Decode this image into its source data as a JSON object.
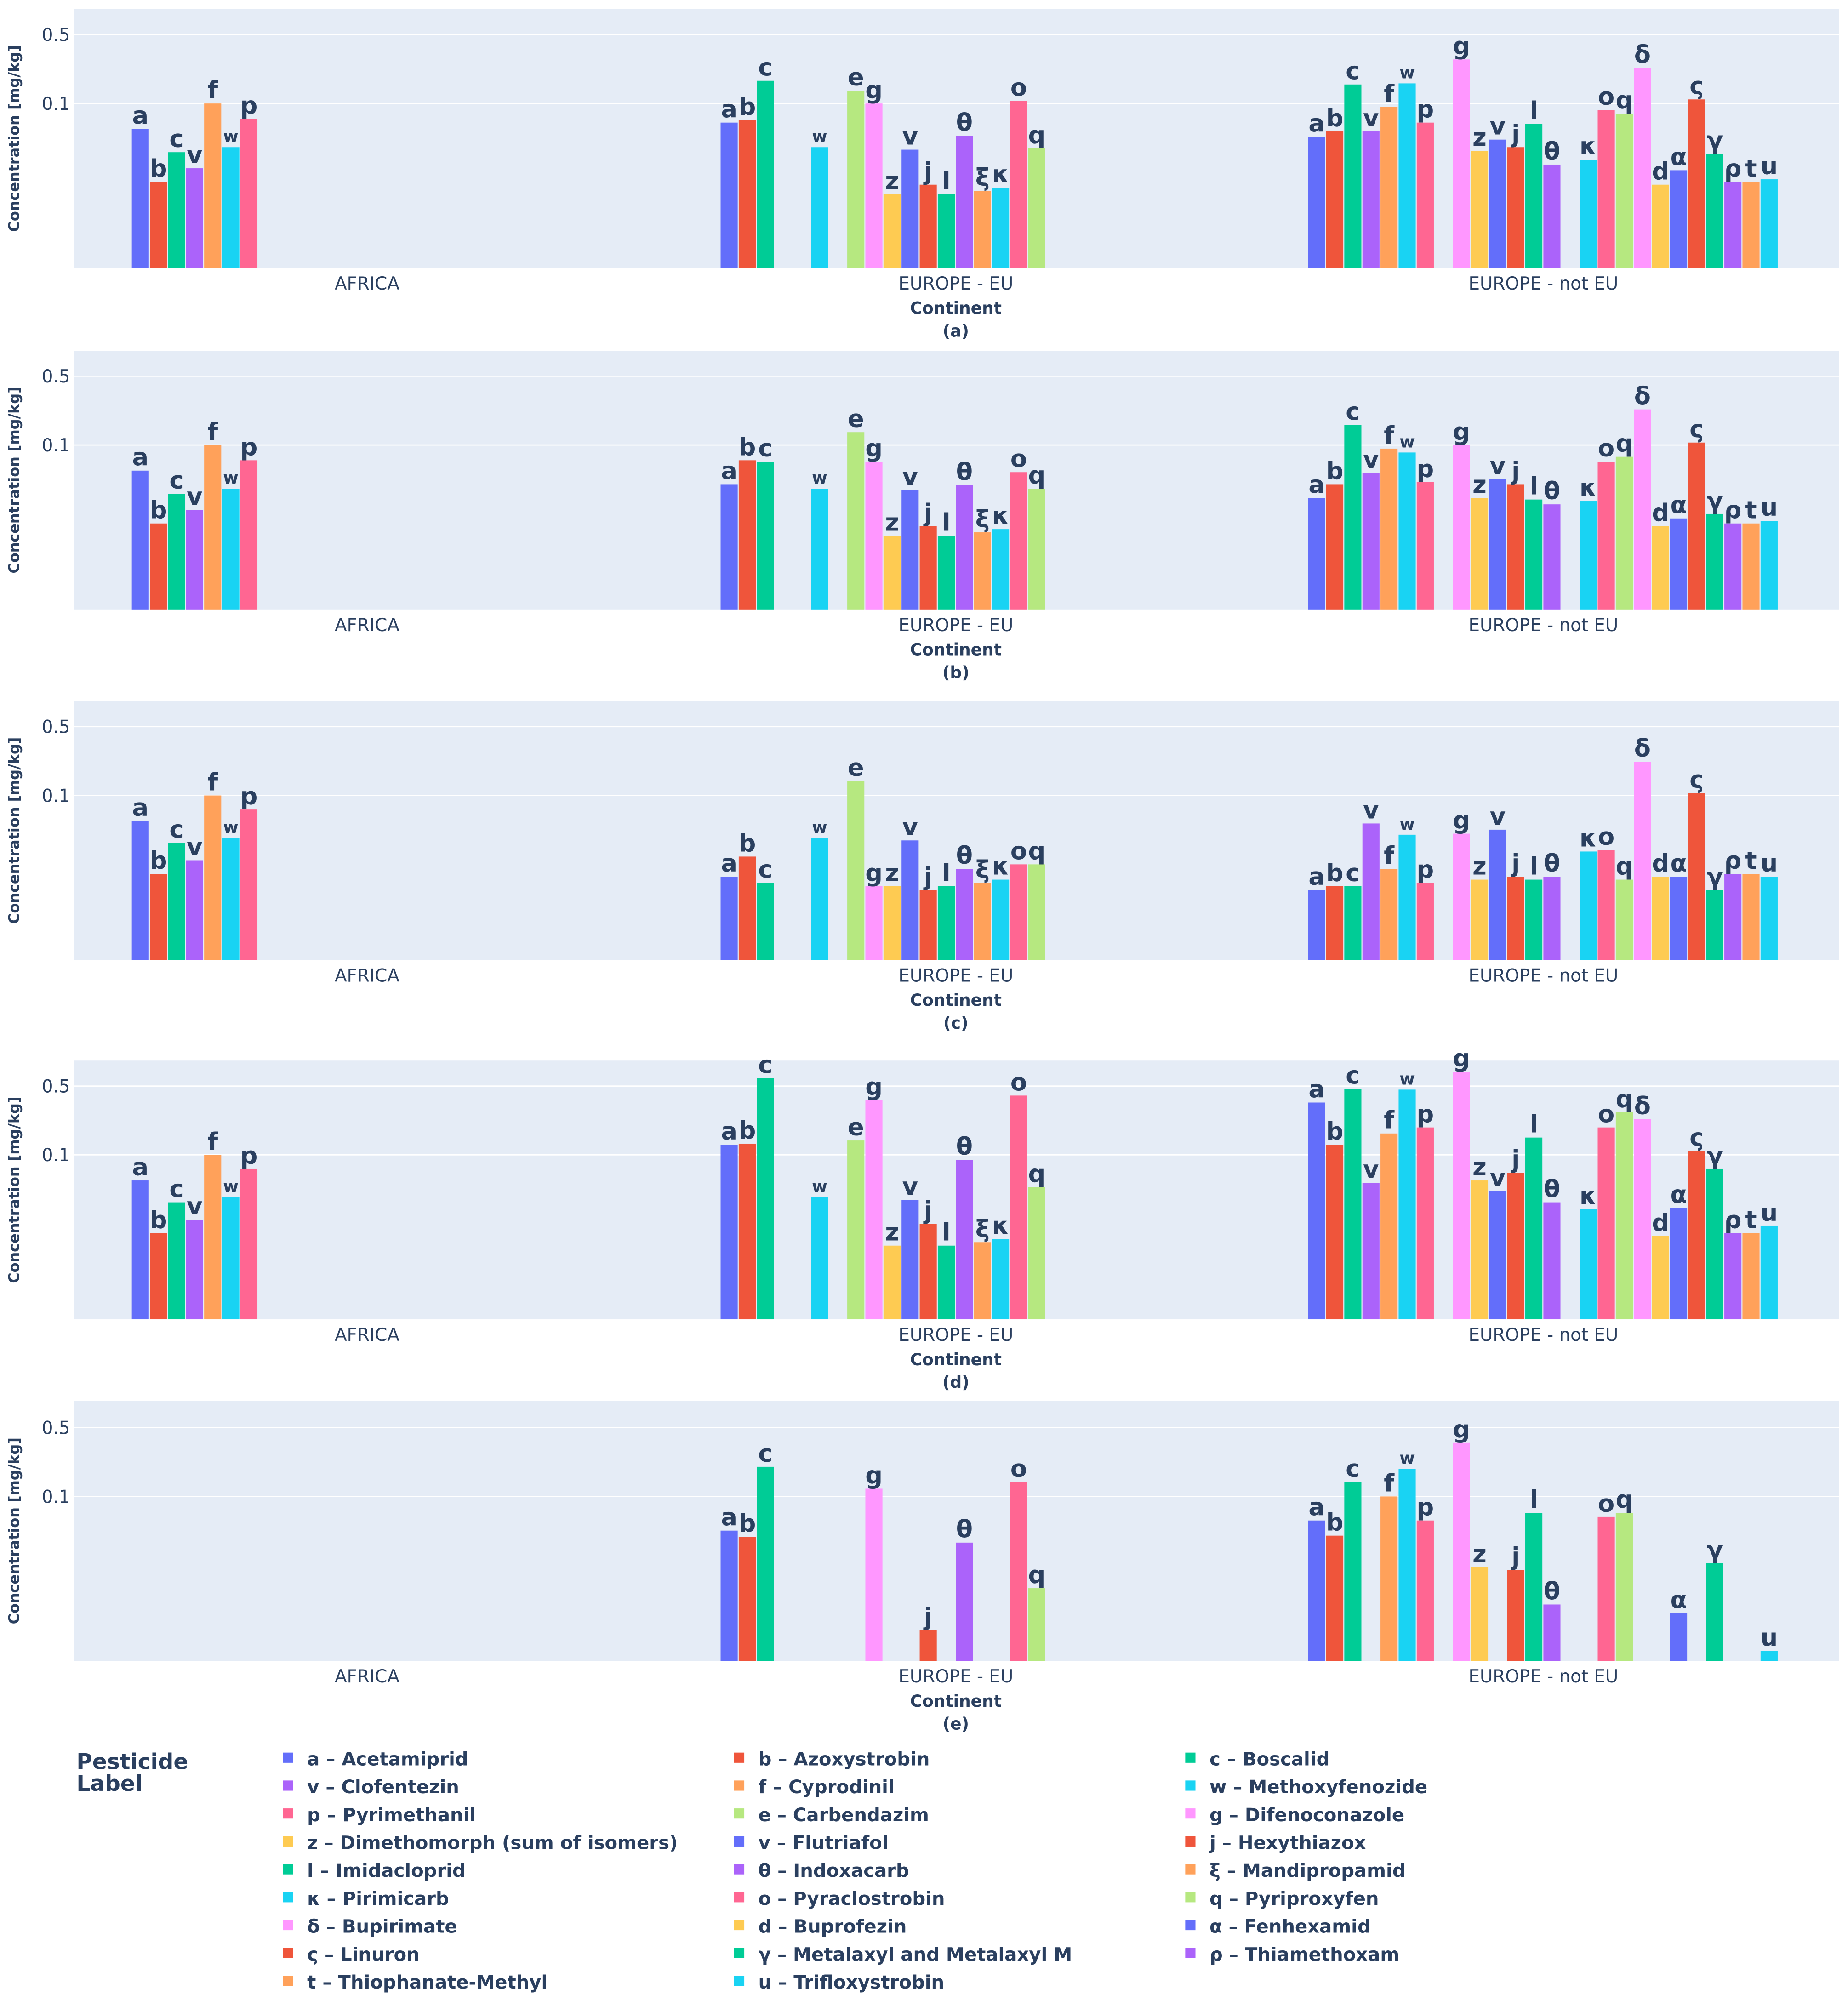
{
  "chart_data": {
    "type": "bar",
    "barmode": "group",
    "yscale": "log",
    "ylabel": "Concentration [mg/kg]",
    "xlabel": "Continent",
    "yticks": [
      0.1,
      0.5
    ],
    "ytick_labels": [
      "0.1",
      "0.5"
    ],
    "ylim": [
      0.0021,
      0.9
    ],
    "categories": [
      "AFRICA",
      "EUROPE - EU",
      "EUROPE - not EU"
    ],
    "legend": {
      "title": "Pesticide Label",
      "placement": "bottom"
    },
    "pesticides": [
      {
        "label": "a",
        "name": "a – Acetamiprid",
        "color": "#636EFA"
      },
      {
        "label": "b",
        "name": "b – Azoxystrobin",
        "color": "#EF553B"
      },
      {
        "label": "c",
        "name": "c – Boscalid",
        "color": "#00CC96"
      },
      {
        "label": "v",
        "name": "v – Clofentezin",
        "color": "#AB63FA"
      },
      {
        "label": "f",
        "name": "f – Cyprodinil",
        "color": "#FFA15A"
      },
      {
        "label": "w",
        "name": "w – Methoxyfenozide",
        "color": "#19D3F3"
      },
      {
        "label": "p",
        "name": "p – Pyrimethanil",
        "color": "#FF6692"
      },
      {
        "label": "e",
        "name": "e – Carbendazim",
        "color": "#B6E880"
      },
      {
        "label": "g",
        "name": "g – Difenoconazole",
        "color": "#FF97FF"
      },
      {
        "label": "z",
        "name": "z – Dimethomorph (sum of isomers)",
        "color": "#FECB52"
      },
      {
        "label": "v",
        "name": "v – Flutriafol",
        "color": "#636EFA"
      },
      {
        "label": "j",
        "name": "j – Hexythiazox",
        "color": "#EF553B"
      },
      {
        "label": "l",
        "name": "l – Imidacloprid",
        "color": "#00CC96"
      },
      {
        "label": "θ",
        "name": "θ – Indoxacarb",
        "color": "#AB63FA"
      },
      {
        "label": "ξ",
        "name": "ξ – Mandipropamid",
        "color": "#FFA15A"
      },
      {
        "label": "κ",
        "name": "κ – Pirimicarb",
        "color": "#19D3F3"
      },
      {
        "label": "o",
        "name": "o – Pyraclostrobin",
        "color": "#FF6692"
      },
      {
        "label": "q",
        "name": "q – Pyriproxyfen",
        "color": "#B6E880"
      },
      {
        "label": "δ",
        "name": "δ – Bupirimate",
        "color": "#FF97FF"
      },
      {
        "label": "d",
        "name": "d – Buprofezin",
        "color": "#FECB52"
      },
      {
        "label": "α",
        "name": "α – Fenhexamid",
        "color": "#636EFA"
      },
      {
        "label": "ς",
        "name": "ς – Linuron",
        "color": "#EF553B"
      },
      {
        "label": "γ",
        "name": "γ – Metalaxyl and Metalaxyl M",
        "color": "#00CC96"
      },
      {
        "label": "ρ",
        "name": "ρ – Thiamethoxam",
        "color": "#AB63FA"
      },
      {
        "label": "t",
        "name": "t – Thiophanate-Methyl",
        "color": "#FFA15A"
      },
      {
        "label": "u",
        "name": "u – Trifloxystrobin",
        "color": "#19D3F3"
      }
    ],
    "panels": [
      {
        "caption": "(a)",
        "values": [
          [
            0.055,
            0.016,
            0.032,
            0.022,
            0.1,
            0.036,
            0.07,
            null,
            null,
            null,
            null,
            null,
            null,
            null,
            null,
            null,
            null,
            null,
            null,
            null,
            null,
            null,
            null,
            null,
            null,
            null
          ],
          [
            0.064,
            0.068,
            0.17,
            null,
            null,
            0.036,
            null,
            0.135,
            0.1,
            0.012,
            0.034,
            0.015,
            0.012,
            0.047,
            0.013,
            0.014,
            0.106,
            0.035,
            null,
            null,
            null,
            null,
            null,
            null,
            null,
            null
          ],
          [
            0.046,
            0.052,
            0.156,
            0.052,
            0.092,
            0.16,
            0.064,
            null,
            0.28,
            0.033,
            0.043,
            0.036,
            0.062,
            0.024,
            null,
            0.027,
            0.086,
            0.079,
            0.23,
            0.015,
            0.021,
            0.11,
            0.031,
            0.016,
            0.016,
            0.017
          ]
        ]
      },
      {
        "caption": "(b)",
        "values": [
          [
            0.055,
            0.016,
            0.032,
            0.022,
            0.1,
            0.036,
            0.07,
            null,
            null,
            null,
            null,
            null,
            null,
            null,
            null,
            null,
            null,
            null,
            null,
            null,
            null,
            null,
            null,
            null,
            null,
            null
          ],
          [
            0.04,
            0.07,
            0.068,
            null,
            null,
            0.036,
            null,
            0.135,
            0.068,
            0.012,
            0.035,
            0.015,
            0.012,
            0.039,
            0.013,
            0.014,
            0.053,
            0.036,
            null,
            null,
            null,
            null,
            null,
            null,
            null,
            null
          ],
          [
            0.029,
            0.04,
            0.16,
            0.052,
            0.092,
            0.084,
            0.042,
            null,
            0.1,
            0.029,
            0.045,
            0.04,
            0.028,
            0.025,
            null,
            0.027,
            0.068,
            0.076,
            0.23,
            0.015,
            0.018,
            0.106,
            0.02,
            0.016,
            0.016,
            0.017
          ]
        ]
      },
      {
        "caption": "(c)",
        "values": [
          [
            0.055,
            0.016,
            0.033,
            0.022,
            0.1,
            0.037,
            0.072,
            null,
            null,
            null,
            null,
            null,
            null,
            null,
            null,
            null,
            null,
            null,
            null,
            null,
            null,
            null,
            null,
            null,
            null,
            null
          ],
          [
            0.015,
            0.024,
            0.013,
            null,
            null,
            0.037,
            null,
            0.14,
            0.012,
            0.012,
            0.035,
            0.011,
            0.012,
            0.018,
            0.013,
            0.014,
            0.02,
            0.02,
            null,
            null,
            null,
            null,
            null,
            null,
            null,
            null
          ],
          [
            0.011,
            0.012,
            0.012,
            0.052,
            0.018,
            0.04,
            0.013,
            null,
            0.041,
            0.014,
            0.045,
            0.015,
            0.014,
            0.015,
            null,
            0.027,
            0.028,
            0.014,
            0.22,
            0.015,
            0.015,
            0.106,
            0.011,
            0.016,
            0.016,
            0.015
          ]
        ]
      },
      {
        "caption": "(d)",
        "values": [
          [
            0.055,
            0.016,
            0.033,
            0.022,
            0.1,
            0.037,
            0.072,
            null,
            null,
            null,
            null,
            null,
            null,
            null,
            null,
            null,
            null,
            null,
            null,
            null,
            null,
            null,
            null,
            null,
            null,
            null
          ],
          [
            0.127,
            0.13,
            0.6,
            null,
            null,
            0.037,
            null,
            0.14,
            0.36,
            0.012,
            0.035,
            0.02,
            0.012,
            0.089,
            0.013,
            0.014,
            0.4,
            0.047,
            null,
            null,
            null,
            null,
            null,
            null,
            null,
            null
          ],
          [
            0.34,
            0.127,
            0.47,
            0.052,
            0.165,
            0.46,
            0.19,
            null,
            0.7,
            0.055,
            0.043,
            0.066,
            0.15,
            0.033,
            null,
            0.028,
            0.19,
            0.27,
            0.23,
            0.015,
            0.029,
            0.11,
            0.072,
            0.016,
            0.016,
            0.019
          ]
        ]
      },
      {
        "caption": "(e)",
        "values": [
          [
            null,
            null,
            null,
            null,
            null,
            null,
            null,
            null,
            null,
            null,
            null,
            null,
            null,
            null,
            null,
            null,
            null,
            null,
            null,
            null,
            null,
            null,
            null,
            null,
            null,
            null
          ],
          [
            0.045,
            0.039,
            0.2,
            null,
            null,
            null,
            null,
            null,
            0.12,
            null,
            null,
            0.0044,
            null,
            0.034,
            null,
            null,
            0.14,
            0.0117,
            null,
            null,
            null,
            null,
            null,
            null,
            null,
            null
          ],
          [
            0.057,
            0.04,
            0.14,
            null,
            0.1,
            0.19,
            0.057,
            null,
            0.35,
            0.019,
            null,
            0.018,
            0.068,
            0.008,
            null,
            null,
            0.062,
            0.068,
            null,
            null,
            0.0065,
            null,
            0.021,
            null,
            null,
            0.0027
          ]
        ]
      }
    ]
  }
}
